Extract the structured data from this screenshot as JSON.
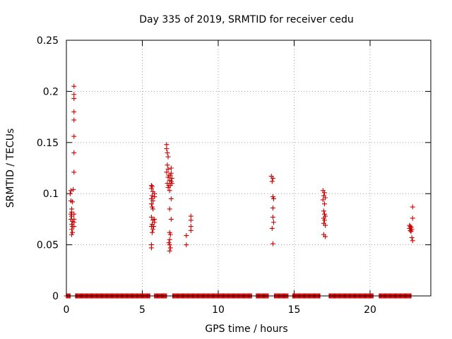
{
  "chart_data": {
    "type": "scatter",
    "title": "Day 335 of 2019, SRMTID for receiver cedu",
    "xlabel": "GPS time / hours",
    "ylabel": "SRMTID / TECUs",
    "xlim": [
      0,
      24
    ],
    "ylim": [
      0,
      0.25
    ],
    "xticks": [
      0,
      5,
      10,
      15,
      20
    ],
    "yticks": [
      0,
      0.05,
      0.1,
      0.15,
      0.2,
      0.25
    ],
    "ytick_labels": [
      "0",
      "0.05",
      "0.1",
      "0.15",
      "0.2",
      "0.25"
    ],
    "grid": true,
    "marker": "+",
    "color": "#cc0000",
    "zero_segments": [
      [
        0.0,
        0.25
      ],
      [
        0.6,
        5.5
      ],
      [
        5.8,
        6.6
      ],
      [
        7.0,
        12.2
      ],
      [
        12.5,
        13.3
      ],
      [
        13.7,
        14.6
      ],
      [
        14.9,
        16.7
      ],
      [
        17.3,
        20.2
      ],
      [
        20.6,
        22.7
      ]
    ],
    "zero_step": 0.05,
    "series": [
      {
        "name": "SRMTID",
        "points": [
          [
            0.25,
            0.1
          ],
          [
            0.3,
            0.103
          ],
          [
            0.3,
            0.093
          ],
          [
            0.35,
            0.085
          ],
          [
            0.35,
            0.082
          ],
          [
            0.3,
            0.08
          ],
          [
            0.35,
            0.078
          ],
          [
            0.3,
            0.075
          ],
          [
            0.4,
            0.073
          ],
          [
            0.35,
            0.07
          ],
          [
            0.4,
            0.068
          ],
          [
            0.35,
            0.065
          ],
          [
            0.4,
            0.062
          ],
          [
            0.35,
            0.06
          ],
          [
            0.4,
            0.092
          ],
          [
            0.45,
            0.104
          ],
          [
            0.5,
            0.205
          ],
          [
            0.5,
            0.197
          ],
          [
            0.5,
            0.193
          ],
          [
            0.5,
            0.18
          ],
          [
            0.5,
            0.172
          ],
          [
            0.5,
            0.156
          ],
          [
            0.5,
            0.14
          ],
          [
            0.5,
            0.121
          ],
          [
            0.5,
            0.08
          ],
          [
            0.5,
            0.075
          ],
          [
            0.5,
            0.072
          ],
          [
            0.5,
            0.068
          ],
          [
            5.6,
            0.108
          ],
          [
            5.65,
            0.107
          ],
          [
            5.6,
            0.105
          ],
          [
            5.7,
            0.102
          ],
          [
            5.65,
            0.098
          ],
          [
            5.6,
            0.095
          ],
          [
            5.7,
            0.093
          ],
          [
            5.6,
            0.09
          ],
          [
            5.65,
            0.087
          ],
          [
            5.7,
            0.085
          ],
          [
            5.6,
            0.077
          ],
          [
            5.7,
            0.074
          ],
          [
            5.65,
            0.07
          ],
          [
            5.6,
            0.068
          ],
          [
            5.7,
            0.065
          ],
          [
            5.65,
            0.062
          ],
          [
            5.6,
            0.05
          ],
          [
            5.6,
            0.047
          ],
          [
            5.8,
            0.1
          ],
          [
            5.8,
            0.097
          ],
          [
            5.8,
            0.075
          ],
          [
            5.8,
            0.072
          ],
          [
            5.75,
            0.068
          ],
          [
            6.6,
            0.148
          ],
          [
            6.6,
            0.144
          ],
          [
            6.65,
            0.14
          ],
          [
            6.7,
            0.136
          ],
          [
            6.65,
            0.128
          ],
          [
            6.7,
            0.124
          ],
          [
            6.6,
            0.121
          ],
          [
            6.75,
            0.118
          ],
          [
            6.7,
            0.116
          ],
          [
            6.8,
            0.113
          ],
          [
            6.65,
            0.11
          ],
          [
            6.75,
            0.108
          ],
          [
            6.7,
            0.106
          ],
          [
            6.8,
            0.103
          ],
          [
            6.9,
            0.125
          ],
          [
            6.9,
            0.12
          ],
          [
            6.85,
            0.118
          ],
          [
            6.95,
            0.115
          ],
          [
            6.9,
            0.112
          ],
          [
            6.95,
            0.11
          ],
          [
            6.85,
            0.108
          ],
          [
            6.9,
            0.095
          ],
          [
            6.8,
            0.085
          ],
          [
            6.9,
            0.075
          ],
          [
            6.8,
            0.062
          ],
          [
            6.85,
            0.06
          ],
          [
            6.8,
            0.055
          ],
          [
            6.75,
            0.052
          ],
          [
            6.8,
            0.05
          ],
          [
            6.85,
            0.047
          ],
          [
            6.8,
            0.044
          ],
          [
            7.9,
            0.059
          ],
          [
            7.9,
            0.05
          ],
          [
            8.2,
            0.078
          ],
          [
            8.2,
            0.074
          ],
          [
            8.2,
            0.068
          ],
          [
            8.2,
            0.064
          ],
          [
            13.5,
            0.117
          ],
          [
            13.6,
            0.115
          ],
          [
            13.55,
            0.112
          ],
          [
            13.6,
            0.097
          ],
          [
            13.65,
            0.095
          ],
          [
            13.6,
            0.086
          ],
          [
            13.6,
            0.077
          ],
          [
            13.65,
            0.072
          ],
          [
            13.55,
            0.066
          ],
          [
            13.6,
            0.051
          ],
          [
            16.9,
            0.103
          ],
          [
            17.0,
            0.101
          ],
          [
            16.95,
            0.098
          ],
          [
            17.05,
            0.096
          ],
          [
            16.9,
            0.094
          ],
          [
            17.0,
            0.09
          ],
          [
            16.95,
            0.083
          ],
          [
            17.0,
            0.08
          ],
          [
            17.05,
            0.078
          ],
          [
            16.95,
            0.076
          ],
          [
            17.0,
            0.074
          ],
          [
            16.95,
            0.071
          ],
          [
            17.05,
            0.069
          ],
          [
            16.95,
            0.06
          ],
          [
            17.05,
            0.058
          ],
          [
            22.6,
            0.069
          ],
          [
            22.65,
            0.068
          ],
          [
            22.7,
            0.067
          ],
          [
            22.6,
            0.066
          ],
          [
            22.75,
            0.065
          ],
          [
            22.65,
            0.064
          ],
          [
            22.7,
            0.063
          ],
          [
            22.8,
            0.087
          ],
          [
            22.8,
            0.076
          ],
          [
            22.75,
            0.057
          ],
          [
            22.8,
            0.054
          ]
        ]
      }
    ]
  }
}
